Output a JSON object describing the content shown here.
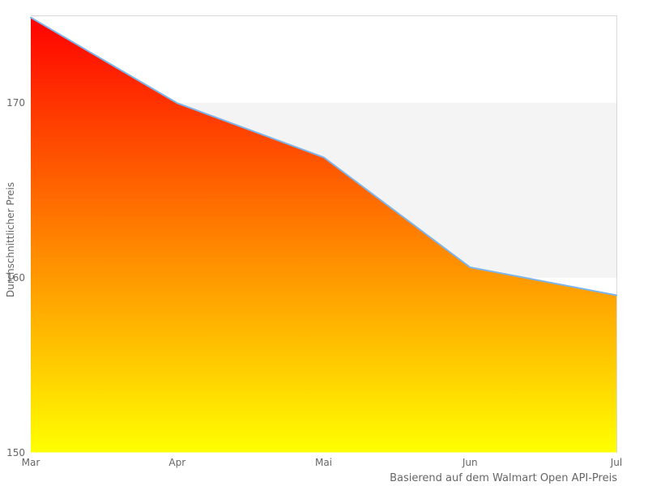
{
  "chart_data": {
    "type": "area",
    "categories": [
      "Mar",
      "Apr",
      "Mai",
      "Jun",
      "Jul"
    ],
    "values": [
      174.9,
      170.0,
      166.9,
      160.6,
      159.0
    ],
    "title": "",
    "xlabel": "",
    "ylabel": "Durchschnittlicher Preis",
    "caption": "Basierend auf dem Walmart Open API-Preis",
    "ylim": [
      150,
      175
    ],
    "yticks": [
      150,
      160,
      170
    ],
    "band": {
      "from": 160,
      "to": 170,
      "color": "#f4f4f4"
    },
    "legend": "none",
    "grid": "alternate horizontal band 160-170 only, top and right plot border",
    "colors": {
      "line": "#7cb5ec",
      "gradient_top": "#ff0000",
      "gradient_bottom": "#ffff00",
      "border": "#d8d8d8",
      "text": "#666666"
    }
  }
}
